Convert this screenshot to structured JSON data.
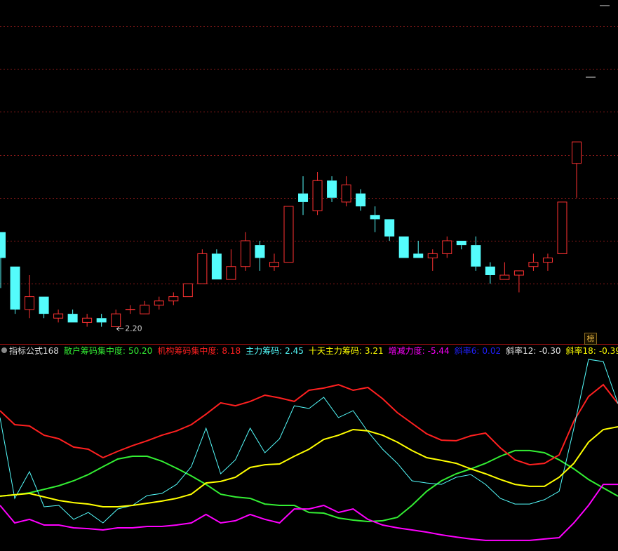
{
  "chart_data": [
    {
      "type": "candlestick",
      "categories": [
        null,
        null,
        null,
        null,
        null,
        null,
        null,
        null,
        null,
        null,
        null,
        null,
        null,
        null,
        null,
        null,
        null,
        null,
        null,
        null,
        null,
        null,
        null,
        null,
        null,
        null,
        null,
        null,
        null,
        null,
        null,
        null,
        null,
        null,
        null,
        null,
        null,
        null,
        null,
        null,
        null
      ],
      "open": [
        2.42,
        2.34,
        2.24,
        2.27,
        2.22,
        2.23,
        2.21,
        2.22,
        2.2,
        2.24,
        2.23,
        2.25,
        2.26,
        2.27,
        2.3,
        2.37,
        2.31,
        2.34,
        2.39,
        2.34,
        2.35,
        2.51,
        2.47,
        2.54,
        2.49,
        2.51,
        2.46,
        2.45,
        2.41,
        2.37,
        2.36,
        2.37,
        2.4,
        2.39,
        2.34,
        2.31,
        2.32,
        2.34,
        2.35,
        2.37,
        2.58
      ],
      "high": [
        2.42,
        2.34,
        2.32,
        2.27,
        2.24,
        2.24,
        2.23,
        2.23,
        2.24,
        2.25,
        2.26,
        2.27,
        2.28,
        2.3,
        2.38,
        2.38,
        2.38,
        2.42,
        2.4,
        2.37,
        2.48,
        2.55,
        2.56,
        2.55,
        2.55,
        2.52,
        2.48,
        2.45,
        2.41,
        2.4,
        2.38,
        2.41,
        2.4,
        2.41,
        2.35,
        2.35,
        2.33,
        2.37,
        2.37,
        2.49,
        2.63
      ],
      "low": [
        2.29,
        2.23,
        2.22,
        2.22,
        2.21,
        2.21,
        2.2,
        2.2,
        2.2,
        2.23,
        2.23,
        2.24,
        2.25,
        2.27,
        2.3,
        2.31,
        2.31,
        2.33,
        2.33,
        2.33,
        2.35,
        2.46,
        2.46,
        2.49,
        2.48,
        2.47,
        2.42,
        2.4,
        2.36,
        2.36,
        2.33,
        2.36,
        2.38,
        2.33,
        2.3,
        2.31,
        2.28,
        2.33,
        2.33,
        2.37,
        2.5
      ],
      "close": [
        2.36,
        2.24,
        2.27,
        2.23,
        2.23,
        2.21,
        2.22,
        2.21,
        2.23,
        2.24,
        2.25,
        2.26,
        2.27,
        2.3,
        2.37,
        2.31,
        2.34,
        2.4,
        2.36,
        2.35,
        2.48,
        2.49,
        2.54,
        2.5,
        2.53,
        2.48,
        2.45,
        2.41,
        2.36,
        2.36,
        2.37,
        2.4,
        2.39,
        2.34,
        2.32,
        2.32,
        2.33,
        2.35,
        2.36,
        2.49,
        2.63
      ],
      "up_color": "#ff3232",
      "down_color": "#54fcfc",
      "ylim": [
        2.16,
        2.96
      ],
      "yticks": [
        2.3,
        2.4,
        2.5,
        2.6,
        2.7,
        2.8,
        2.9
      ],
      "grid": true,
      "grid_color": "#8b1a1a",
      "annotation": {
        "value": 2.2,
        "label": "2.20"
      },
      "button": "榜"
    },
    {
      "type": "line",
      "title": "指标公式168",
      "categories": [
        null,
        null,
        null,
        null,
        null,
        null,
        null,
        null,
        null,
        null,
        null,
        null,
        null,
        null,
        null,
        null,
        null,
        null,
        null,
        null,
        null,
        null,
        null,
        null,
        null,
        null,
        null,
        null,
        null,
        null,
        null,
        null,
        null,
        null,
        null,
        null,
        null,
        null,
        null,
        null,
        null,
        null,
        null
      ],
      "ylim": [
        0,
        100
      ],
      "series": [
        {
          "name": "散户筹码集中度:",
          "reading": "50.20",
          "color": "#33ee33",
          "values": [
            27.9,
            28.6,
            29.6,
            31.4,
            33.2,
            35.7,
            38.9,
            42.9,
            46.8,
            48.2,
            48.2,
            45.7,
            42.1,
            38.2,
            33.9,
            28.9,
            27.5,
            26.8,
            23.9,
            23.2,
            23.2,
            19.6,
            19.3,
            16.8,
            15.7,
            15.0,
            15.4,
            17.1,
            23.2,
            30.4,
            35.7,
            39.3,
            41.8,
            44.6,
            48.2,
            51.1,
            51.1,
            50.0,
            46.4,
            41.8,
            36.4,
            32.1,
            27.9
          ]
        },
        {
          "name": "机构筹码集中度:",
          "reading": "8.18",
          "color": "#ff2020",
          "values": [
            71.4,
            64.3,
            63.6,
            58.9,
            57.1,
            52.9,
            51.8,
            47.5,
            50.7,
            53.6,
            56.1,
            58.9,
            61.1,
            64.3,
            69.6,
            75.4,
            73.9,
            76.1,
            79.3,
            77.9,
            76.1,
            81.8,
            82.9,
            84.6,
            81.8,
            83.2,
            77.5,
            70.4,
            65.0,
            59.6,
            56.4,
            56.1,
            58.6,
            60.0,
            52.5,
            46.4,
            43.9,
            44.6,
            48.9,
            66.1,
            78.6,
            84.6,
            75.0
          ]
        },
        {
          "name": "主力筹码:",
          "reading": "2.45",
          "color": "#54fcfc",
          "values": [
            67.9,
            26.8,
            40.4,
            22.5,
            23.2,
            16.1,
            19.6,
            14.3,
            21.4,
            23.2,
            28.2,
            29.3,
            33.9,
            42.9,
            62.5,
            39.3,
            46.4,
            62.5,
            50.0,
            57.1,
            73.9,
            72.5,
            78.2,
            67.9,
            71.4,
            60.7,
            51.8,
            44.6,
            35.7,
            34.6,
            33.9,
            37.5,
            38.9,
            33.9,
            26.8,
            23.9,
            23.9,
            26.1,
            30.4,
            62.5,
            97.5,
            96.4,
            75.0
          ]
        },
        {
          "name": "十天主力筹码:",
          "reading": "3.21",
          "color": "#ffff00",
          "values": [
            27.9,
            28.6,
            29.3,
            27.5,
            25.7,
            24.6,
            23.9,
            22.5,
            22.5,
            23.2,
            24.3,
            25.4,
            26.8,
            28.9,
            34.6,
            35.4,
            37.5,
            42.5,
            43.9,
            44.3,
            48.2,
            51.8,
            56.8,
            58.9,
            61.8,
            61.1,
            58.9,
            55.4,
            51.1,
            47.5,
            46.1,
            44.6,
            41.8,
            39.3,
            36.4,
            33.9,
            32.9,
            32.9,
            37.5,
            44.6,
            55.4,
            61.8,
            63.2
          ]
        },
        {
          "name": "增减力度:",
          "reading": "-5.44",
          "color": "#ff00ff",
          "values": [
            23.2,
            14.3,
            16.1,
            13.2,
            13.2,
            11.8,
            11.4,
            10.7,
            11.8,
            11.8,
            12.5,
            12.5,
            13.2,
            14.3,
            18.6,
            14.3,
            15.4,
            18.6,
            16.1,
            14.3,
            21.4,
            21.4,
            23.2,
            19.6,
            21.4,
            16.1,
            13.2,
            11.8,
            10.7,
            9.6,
            8.2,
            7.1,
            6.1,
            5.4,
            5.4,
            5.4,
            5.4,
            6.1,
            6.8,
            14.3,
            23.2,
            33.9,
            33.9
          ]
        }
      ],
      "readouts": [
        {
          "name": "斜率6:",
          "reading": "0.02",
          "color": "#2020ff"
        },
        {
          "name": "斜率12:",
          "reading": "-0.30",
          "color": "#e8e8e8"
        },
        {
          "name": "斜率18:",
          "reading": "-0.39",
          "color": "#ffff00"
        }
      ]
    }
  ]
}
